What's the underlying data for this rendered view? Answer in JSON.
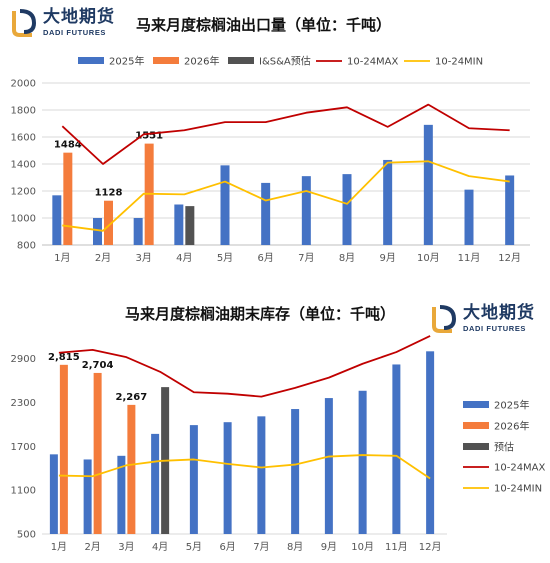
{
  "brand": {
    "name_cn": "大地期货",
    "name_en": "DADI FUTURES"
  },
  "colors": {
    "y2025": "#4472c4",
    "y2026": "#f47c3c",
    "estimate": "#525252",
    "max": "#c00000",
    "min": "#ffc000",
    "grid": "#d9d9d9",
    "logo_gold": "#e9a83a",
    "logo_navy": "#1f3a63"
  },
  "chart_data": [
    {
      "type": "bar",
      "title": "马来月度棕榈油出口量（单位：千吨）",
      "categories": [
        "1月",
        "2月",
        "3月",
        "4月",
        "5月",
        "6月",
        "7月",
        "8月",
        "9月",
        "10月",
        "11月",
        "12月"
      ],
      "ylim": [
        800,
        2000
      ],
      "yticks": [
        800,
        1000,
        1200,
        1400,
        1600,
        1800,
        2000
      ],
      "grid": true,
      "legend_position": "top",
      "legend": [
        "2025年",
        "2026年",
        "I&S&A预估",
        "10-24MAX",
        "10-24MIN"
      ],
      "series": [
        {
          "name": "2025年",
          "kind": "bar",
          "values": [
            1168,
            1000,
            1000,
            1100,
            1390,
            1260,
            1310,
            1325,
            1430,
            1690,
            1210,
            1315
          ]
        },
        {
          "name": "2026年",
          "kind": "bar",
          "values": [
            1484,
            1128,
            1551,
            null,
            null,
            null,
            null,
            null,
            null,
            null,
            null,
            null
          ],
          "labels": [
            "1484",
            "1128",
            "1551"
          ]
        },
        {
          "name": "I&S&A预估",
          "kind": "bar",
          "values": [
            null,
            null,
            null,
            1088,
            null,
            null,
            null,
            null,
            null,
            null,
            null,
            null
          ]
        },
        {
          "name": "10-24MAX",
          "kind": "line",
          "values": [
            1680,
            1400,
            1620,
            1650,
            1710,
            1710,
            1780,
            1820,
            1675,
            1840,
            1665,
            1650
          ]
        },
        {
          "name": "10-24MIN",
          "kind": "line",
          "values": [
            945,
            905,
            1180,
            1175,
            1270,
            1130,
            1200,
            1105,
            1410,
            1420,
            1310,
            1270
          ]
        }
      ]
    },
    {
      "type": "bar",
      "title": "马来月度棕榈油期末库存（单位：千吨）",
      "categories": [
        "1月",
        "2月",
        "3月",
        "4月",
        "5月",
        "6月",
        "7月",
        "8月",
        "9月",
        "10月",
        "11月",
        "12月"
      ],
      "ylim": [
        500,
        3100
      ],
      "yticks": [
        500,
        1100,
        1700,
        2300,
        2900
      ],
      "grid": false,
      "legend_position": "right",
      "legend": [
        "2025年",
        "2026年",
        "预估",
        "10-24MAX",
        "10-24MIN"
      ],
      "series": [
        {
          "name": "2025年",
          "kind": "bar",
          "values": [
            1590,
            1520,
            1570,
            1870,
            1990,
            2030,
            2110,
            2210,
            2360,
            2460,
            2820,
            3000
          ]
        },
        {
          "name": "2026年",
          "kind": "bar",
          "values": [
            2815,
            2704,
            2267,
            null,
            null,
            null,
            null,
            null,
            null,
            null,
            null,
            null
          ],
          "labels": [
            "2,815",
            "2,704",
            "2,267"
          ]
        },
        {
          "name": "预估",
          "kind": "bar",
          "values": [
            null,
            null,
            null,
            2510,
            null,
            null,
            null,
            null,
            null,
            null,
            null,
            null
          ]
        },
        {
          "name": "10-24MAX",
          "kind": "line",
          "values": [
            2980,
            3020,
            2920,
            2720,
            2440,
            2420,
            2380,
            2500,
            2640,
            2830,
            2990,
            3210
          ]
        },
        {
          "name": "10-24MIN",
          "kind": "line",
          "values": [
            1300,
            1290,
            1440,
            1500,
            1520,
            1460,
            1410,
            1450,
            1560,
            1580,
            1570,
            1260
          ]
        }
      ]
    }
  ]
}
